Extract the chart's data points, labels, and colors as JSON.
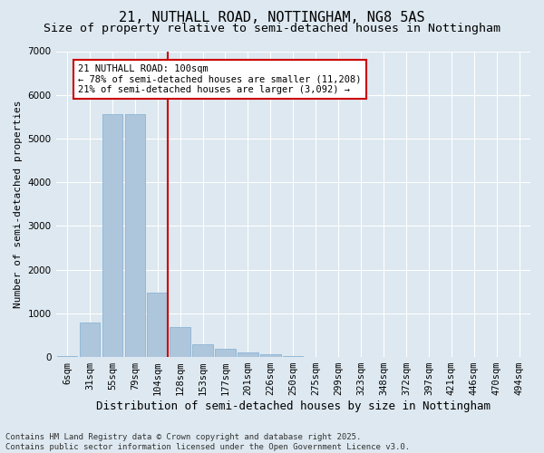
{
  "title1": "21, NUTHALL ROAD, NOTTINGHAM, NG8 5AS",
  "title2": "Size of property relative to semi-detached houses in Nottingham",
  "xlabel": "Distribution of semi-detached houses by size in Nottingham",
  "ylabel": "Number of semi-detached properties",
  "categories": [
    "6sqm",
    "31sqm",
    "55sqm",
    "79sqm",
    "104sqm",
    "128sqm",
    "153sqm",
    "177sqm",
    "201sqm",
    "226sqm",
    "250sqm",
    "275sqm",
    "299sqm",
    "323sqm",
    "348sqm",
    "372sqm",
    "397sqm",
    "421sqm",
    "446sqm",
    "470sqm",
    "494sqm"
  ],
  "values": [
    30,
    800,
    5550,
    5550,
    1480,
    680,
    290,
    190,
    100,
    70,
    25,
    8,
    3,
    2,
    1,
    1,
    0,
    0,
    0,
    0,
    0
  ],
  "bar_color": "#aec6dc",
  "bar_edge_color": "#7fadd0",
  "red_line_x": 4,
  "red_line_color": "#cc0000",
  "ylim": [
    0,
    7000
  ],
  "yticks": [
    0,
    1000,
    2000,
    3000,
    4000,
    5000,
    6000,
    7000
  ],
  "annotation_title": "21 NUTHALL ROAD: 100sqm",
  "annotation_line1": "← 78% of semi-detached houses are smaller (11,208)",
  "annotation_line2": "21% of semi-detached houses are larger (3,092) →",
  "annotation_box_color": "#ffffff",
  "annotation_box_edge_color": "#cc0000",
  "bg_color": "#dde8f0",
  "footer_line1": "Contains HM Land Registry data © Crown copyright and database right 2025.",
  "footer_line2": "Contains public sector information licensed under the Open Government Licence v3.0.",
  "title1_fontsize": 11,
  "title2_fontsize": 9.5,
  "xlabel_fontsize": 9,
  "ylabel_fontsize": 8,
  "tick_fontsize": 7.5,
  "annotation_fontsize": 7.5,
  "footer_fontsize": 6.5
}
